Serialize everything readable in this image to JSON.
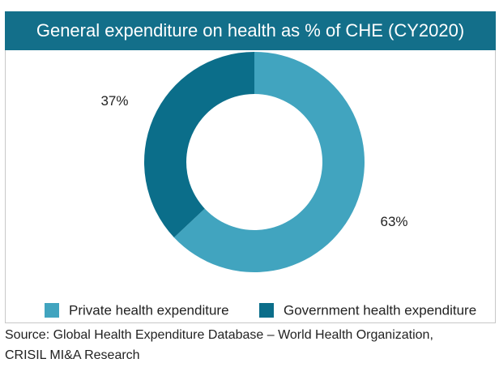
{
  "chart_data": {
    "type": "pie",
    "title": "General expenditure on health as % of CHE (CY2020)",
    "categories": [
      "Private health expenditure",
      "Government health expenditure"
    ],
    "values": [
      63,
      37
    ],
    "value_labels": [
      "63%",
      "37%"
    ],
    "colors": [
      "#41a4bf",
      "#0b6e8a"
    ],
    "donut": true,
    "legend": "bottom",
    "source": [
      "Source: Global Health Expenditure Database – World Health Organization,",
      "CRISIL MI&A Research"
    ]
  }
}
